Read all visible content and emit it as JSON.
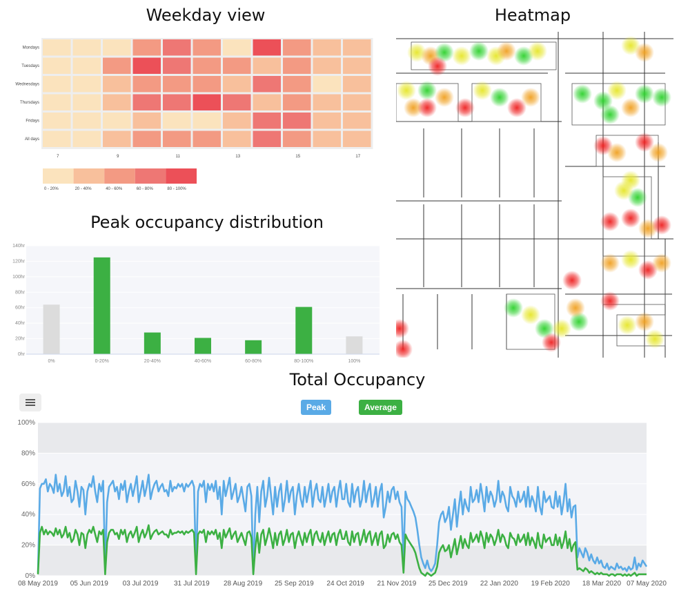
{
  "titles": {
    "weekday": "Weekday view",
    "heatmap": "Heatmap",
    "peak_dist": "Peak occupancy distribution",
    "total": "Total Occupancy"
  },
  "colors": {
    "c0": "#fbe3bd",
    "c1": "#f8c09c",
    "c2": "#f39a83",
    "c3": "#ee7774",
    "c4": "#ec5058",
    "bar_green": "#3cb043",
    "bar_grey": "#dcdcdc",
    "peak_blue": "#5aaae6",
    "avg_green": "#3cb043"
  },
  "chart_data": [
    {
      "type": "heatmap",
      "title": "Weekday view",
      "rows": [
        "Mondays",
        "Tuesdays",
        "Wednesdays",
        "Thursdays",
        "Fridays",
        "All days"
      ],
      "x_tick_labels": [
        "7",
        "9",
        "11",
        "13",
        "15",
        "17"
      ],
      "values": [
        [
          0,
          0,
          0,
          2,
          3,
          2,
          0,
          4,
          2,
          1,
          1
        ],
        [
          0,
          0,
          2,
          4,
          3,
          2,
          2,
          1,
          2,
          1,
          1
        ],
        [
          0,
          0,
          1,
          2,
          2,
          2,
          1,
          3,
          2,
          0,
          1
        ],
        [
          0,
          0,
          1,
          3,
          3,
          4,
          3,
          1,
          2,
          1,
          1
        ],
        [
          0,
          0,
          0,
          1,
          0,
          0,
          1,
          3,
          3,
          1,
          1
        ],
        [
          0,
          0,
          1,
          2,
          2,
          2,
          1,
          3,
          2,
          1,
          1
        ]
      ],
      "legend": [
        "0 - 20%",
        "20 - 40%",
        "40 - 60%",
        "60 - 80%",
        "80 - 100%"
      ]
    },
    {
      "type": "bar",
      "title": "Peak occupancy distribution",
      "categories": [
        "0%",
        "0-20%",
        "20-40%",
        "40-60%",
        "60-80%",
        "80-100%",
        "100%"
      ],
      "values": [
        64,
        125,
        28,
        21,
        18,
        61,
        23
      ],
      "ylim": [
        0,
        140
      ],
      "y_ticks": [
        "0hr",
        "20hr",
        "40hr",
        "60hr",
        "80hr",
        "100hr",
        "120hr",
        "140hr"
      ]
    },
    {
      "type": "line",
      "title": "Total Occupancy",
      "x_range": [
        "2019-05-08",
        "2020-05-07"
      ],
      "x_tick_labels": [
        "08 May 2019",
        "05 Jun 2019",
        "03 Jul 2019",
        "31 Jul 2019",
        "28 Aug 2019",
        "25 Sep 2019",
        "24 Oct 2019",
        "21 Nov 2019",
        "25 Dec 2019",
        "22 Jan 2020",
        "19 Feb 2020",
        "18 Mar 2020",
        "07 May 2020"
      ],
      "y_tick_labels": [
        "0%",
        "20%",
        "40%",
        "60%",
        "80%",
        "100%"
      ],
      "ylim": [
        0,
        100
      ],
      "series": [
        {
          "name": "Peak",
          "values": [
            2,
            57,
            60,
            60,
            63,
            55,
            60,
            58,
            54,
            66,
            55,
            60,
            52,
            55,
            65,
            52,
            58,
            48,
            50,
            62,
            55,
            45,
            58,
            56,
            40,
            55,
            60,
            58,
            65,
            55,
            48,
            60,
            55,
            62,
            5,
            48,
            58,
            60,
            62,
            55,
            58,
            50,
            60,
            56,
            62,
            48,
            55,
            60,
            52,
            58,
            65,
            48,
            55,
            62,
            52,
            58,
            66,
            50,
            56,
            60,
            62,
            55,
            58,
            60,
            55,
            56,
            52,
            62,
            55,
            58,
            57,
            60,
            58,
            60,
            55,
            60,
            58,
            60,
            62,
            58,
            4,
            55,
            60,
            58,
            62,
            48,
            60,
            56,
            60,
            55,
            62,
            50,
            58,
            40,
            62,
            52,
            58,
            64,
            50,
            55,
            60,
            48,
            52,
            58,
            50,
            42,
            58,
            60,
            52,
            2,
            40,
            58,
            35,
            55,
            62,
            45,
            52,
            64,
            52,
            40,
            58,
            45,
            55,
            60,
            42,
            50,
            62,
            48,
            55,
            58,
            40,
            52,
            60,
            50,
            45,
            58,
            48,
            55,
            62,
            45,
            55,
            60,
            50,
            48,
            58,
            45,
            52,
            60,
            48,
            55,
            58,
            45,
            55,
            62,
            50,
            50,
            60,
            48,
            45,
            60,
            48,
            55,
            58,
            45,
            50,
            62,
            48,
            55,
            60,
            45,
            50,
            58,
            45,
            55,
            60,
            38,
            45,
            55,
            48,
            56,
            58,
            50,
            55,
            48,
            45,
            10,
            55,
            50,
            48,
            45,
            42,
            38,
            30,
            20,
            12,
            8,
            5,
            10,
            5,
            3,
            5,
            8,
            20,
            35,
            40,
            42,
            35,
            38,
            45,
            30,
            40,
            50,
            32,
            45,
            55,
            40,
            50,
            45,
            42,
            58,
            48,
            50,
            56,
            48,
            60,
            52,
            42,
            58,
            48,
            55,
            52,
            45,
            50,
            62,
            48,
            55,
            52,
            45,
            42,
            58,
            52,
            50,
            45,
            55,
            48,
            50,
            55,
            45,
            58,
            45,
            52,
            48,
            42,
            58,
            45,
            40,
            55,
            48,
            50,
            52,
            45,
            44,
            55,
            45,
            52,
            40,
            48,
            60,
            42,
            50,
            38,
            45,
            46,
            12,
            18,
            15,
            12,
            18,
            15,
            10,
            14,
            10,
            8,
            12,
            8,
            10,
            6,
            5,
            8,
            4,
            6,
            5,
            4,
            8,
            5,
            6,
            4,
            5,
            3,
            6,
            4,
            5,
            12,
            4,
            8,
            6,
            10,
            8,
            6
          ]
        },
        {
          "name": "Average",
          "values": [
            1,
            28,
            32,
            27,
            30,
            27,
            29,
            28,
            26,
            31,
            27,
            30,
            25,
            27,
            32,
            25,
            28,
            22,
            24,
            30,
            27,
            20,
            28,
            27,
            18,
            27,
            30,
            28,
            32,
            27,
            22,
            29,
            27,
            30,
            1,
            22,
            28,
            30,
            30,
            27,
            28,
            24,
            30,
            27,
            30,
            22,
            27,
            29,
            25,
            28,
            32,
            22,
            27,
            30,
            25,
            28,
            33,
            24,
            27,
            29,
            30,
            27,
            28,
            29,
            27,
            27,
            25,
            30,
            27,
            28,
            28,
            29,
            28,
            29,
            27,
            29,
            28,
            29,
            30,
            28,
            1,
            27,
            29,
            28,
            30,
            22,
            29,
            27,
            29,
            27,
            30,
            24,
            28,
            18,
            30,
            25,
            28,
            31,
            24,
            27,
            29,
            22,
            25,
            28,
            24,
            20,
            28,
            29,
            25,
            1,
            18,
            28,
            15,
            27,
            30,
            20,
            25,
            31,
            25,
            18,
            28,
            20,
            27,
            29,
            20,
            24,
            30,
            22,
            27,
            28,
            18,
            25,
            29,
            24,
            20,
            28,
            22,
            27,
            30,
            20,
            27,
            29,
            24,
            22,
            28,
            20,
            25,
            29,
            22,
            27,
            28,
            20,
            27,
            30,
            24,
            24,
            29,
            22,
            20,
            29,
            22,
            27,
            28,
            20,
            24,
            30,
            22,
            27,
            29,
            20,
            24,
            28,
            20,
            27,
            29,
            18,
            20,
            27,
            22,
            27,
            28,
            24,
            27,
            22,
            20,
            2,
            27,
            24,
            22,
            20,
            18,
            15,
            10,
            5,
            2,
            1,
            0,
            2,
            1,
            0,
            1,
            2,
            6,
            15,
            18,
            20,
            16,
            17,
            20,
            12,
            18,
            24,
            14,
            20,
            26,
            18,
            24,
            20,
            18,
            28,
            22,
            24,
            27,
            22,
            29,
            25,
            18,
            28,
            22,
            27,
            25,
            20,
            24,
            30,
            22,
            27,
            25,
            20,
            18,
            28,
            25,
            24,
            20,
            27,
            22,
            24,
            27,
            20,
            28,
            20,
            25,
            22,
            18,
            28,
            20,
            18,
            27,
            22,
            24,
            25,
            20,
            20,
            27,
            20,
            25,
            18,
            22,
            29,
            18,
            24,
            16,
            20,
            22,
            4,
            5,
            4,
            3,
            5,
            4,
            2,
            3,
            2,
            1,
            2,
            1,
            2,
            1,
            1,
            1,
            0,
            1,
            1,
            0,
            1,
            1,
            1,
            0,
            1,
            0,
            1,
            0,
            1,
            2,
            0,
            1,
            1,
            1,
            1,
            1
          ]
        }
      ]
    }
  ]
}
